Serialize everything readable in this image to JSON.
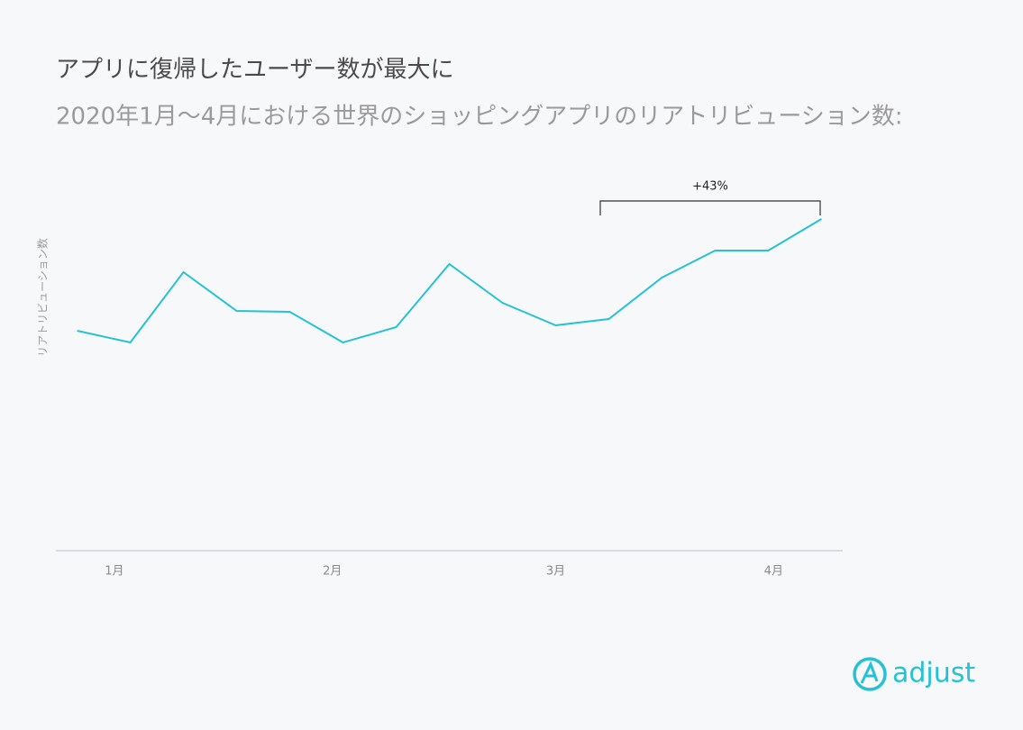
{
  "chart_data": {
    "type": "line",
    "title": "アプリに復帰したユーザー数が最大に",
    "subtitle": "2020年1月〜4月における世界のショッピングアプリのリアトリビューション数:",
    "y_label": "リアトリビューション数",
    "annotation": "+43%",
    "brand": "adjust",
    "color": "#26c1d4",
    "x": [
      0,
      1,
      2,
      3,
      4,
      5,
      6,
      7,
      8,
      9,
      10,
      11,
      12,
      13,
      14
    ],
    "values": [
      244,
      231,
      309,
      266,
      265,
      231,
      248,
      318,
      275,
      250,
      257,
      303,
      333,
      333,
      368
    ],
    "xlim": [
      -0.4,
      14.4
    ],
    "xticks": [
      {
        "value": 0.7,
        "label": "1月"
      },
      {
        "value": 4.8,
        "label": "2月"
      },
      {
        "value": 9,
        "label": "3月"
      },
      {
        "value": 13.1,
        "label": "4月"
      }
    ],
    "ylim": [
      0,
      400
    ]
  }
}
